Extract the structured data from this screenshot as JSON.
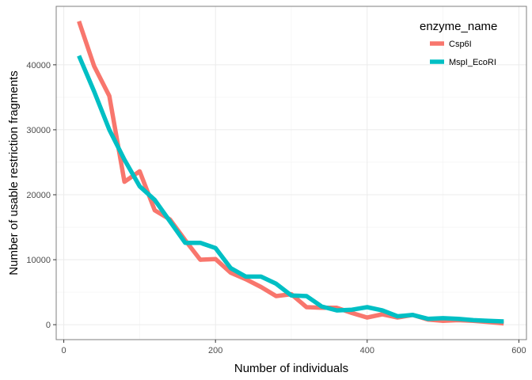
{
  "chart_data": {
    "type": "line",
    "xlabel": "Number of individuals",
    "ylabel": "Number of usable restriction fragments",
    "xlim": [
      -10,
      610
    ],
    "ylim": [
      -2300,
      49000
    ],
    "x_ticks": [
      0,
      200,
      400,
      600
    ],
    "y_ticks": [
      0,
      10000,
      20000,
      30000,
      40000
    ],
    "x_tick_labels": [
      "0",
      "200",
      "400",
      "600"
    ],
    "y_tick_labels": [
      "0",
      "10000",
      "20000",
      "30000",
      "40000"
    ],
    "grid": true,
    "legend": {
      "title": "enzyme_name",
      "position": "top-right"
    },
    "series": [
      {
        "name": "Csp6I",
        "color": "#F8766D",
        "x": [
          20,
          40,
          60,
          80,
          100,
          120,
          140,
          160,
          180,
          200,
          220,
          240,
          260,
          280,
          300,
          320,
          340,
          360,
          380,
          400,
          420,
          440,
          460,
          480,
          500,
          520,
          540,
          560,
          580
        ],
        "y": [
          46700,
          39800,
          35200,
          22000,
          23600,
          17600,
          16200,
          13000,
          10000,
          10100,
          8000,
          7000,
          5800,
          4400,
          4700,
          2700,
          2600,
          2600,
          1800,
          1100,
          1600,
          1100,
          1500,
          800,
          600,
          700,
          600,
          400,
          200
        ]
      },
      {
        "name": "MspI_EcoRI",
        "color": "#00BFC4",
        "x": [
          20,
          40,
          60,
          80,
          100,
          120,
          140,
          160,
          180,
          200,
          220,
          240,
          260,
          280,
          300,
          320,
          340,
          360,
          380,
          400,
          420,
          440,
          460,
          480,
          500,
          520,
          540,
          560,
          580
        ],
        "y": [
          41400,
          35900,
          30000,
          25400,
          21300,
          19200,
          15900,
          12600,
          12600,
          11800,
          8700,
          7400,
          7400,
          6300,
          4500,
          4400,
          2800,
          2200,
          2300,
          2700,
          2200,
          1300,
          1500,
          900,
          1000,
          900,
          700,
          600,
          500
        ]
      }
    ]
  }
}
